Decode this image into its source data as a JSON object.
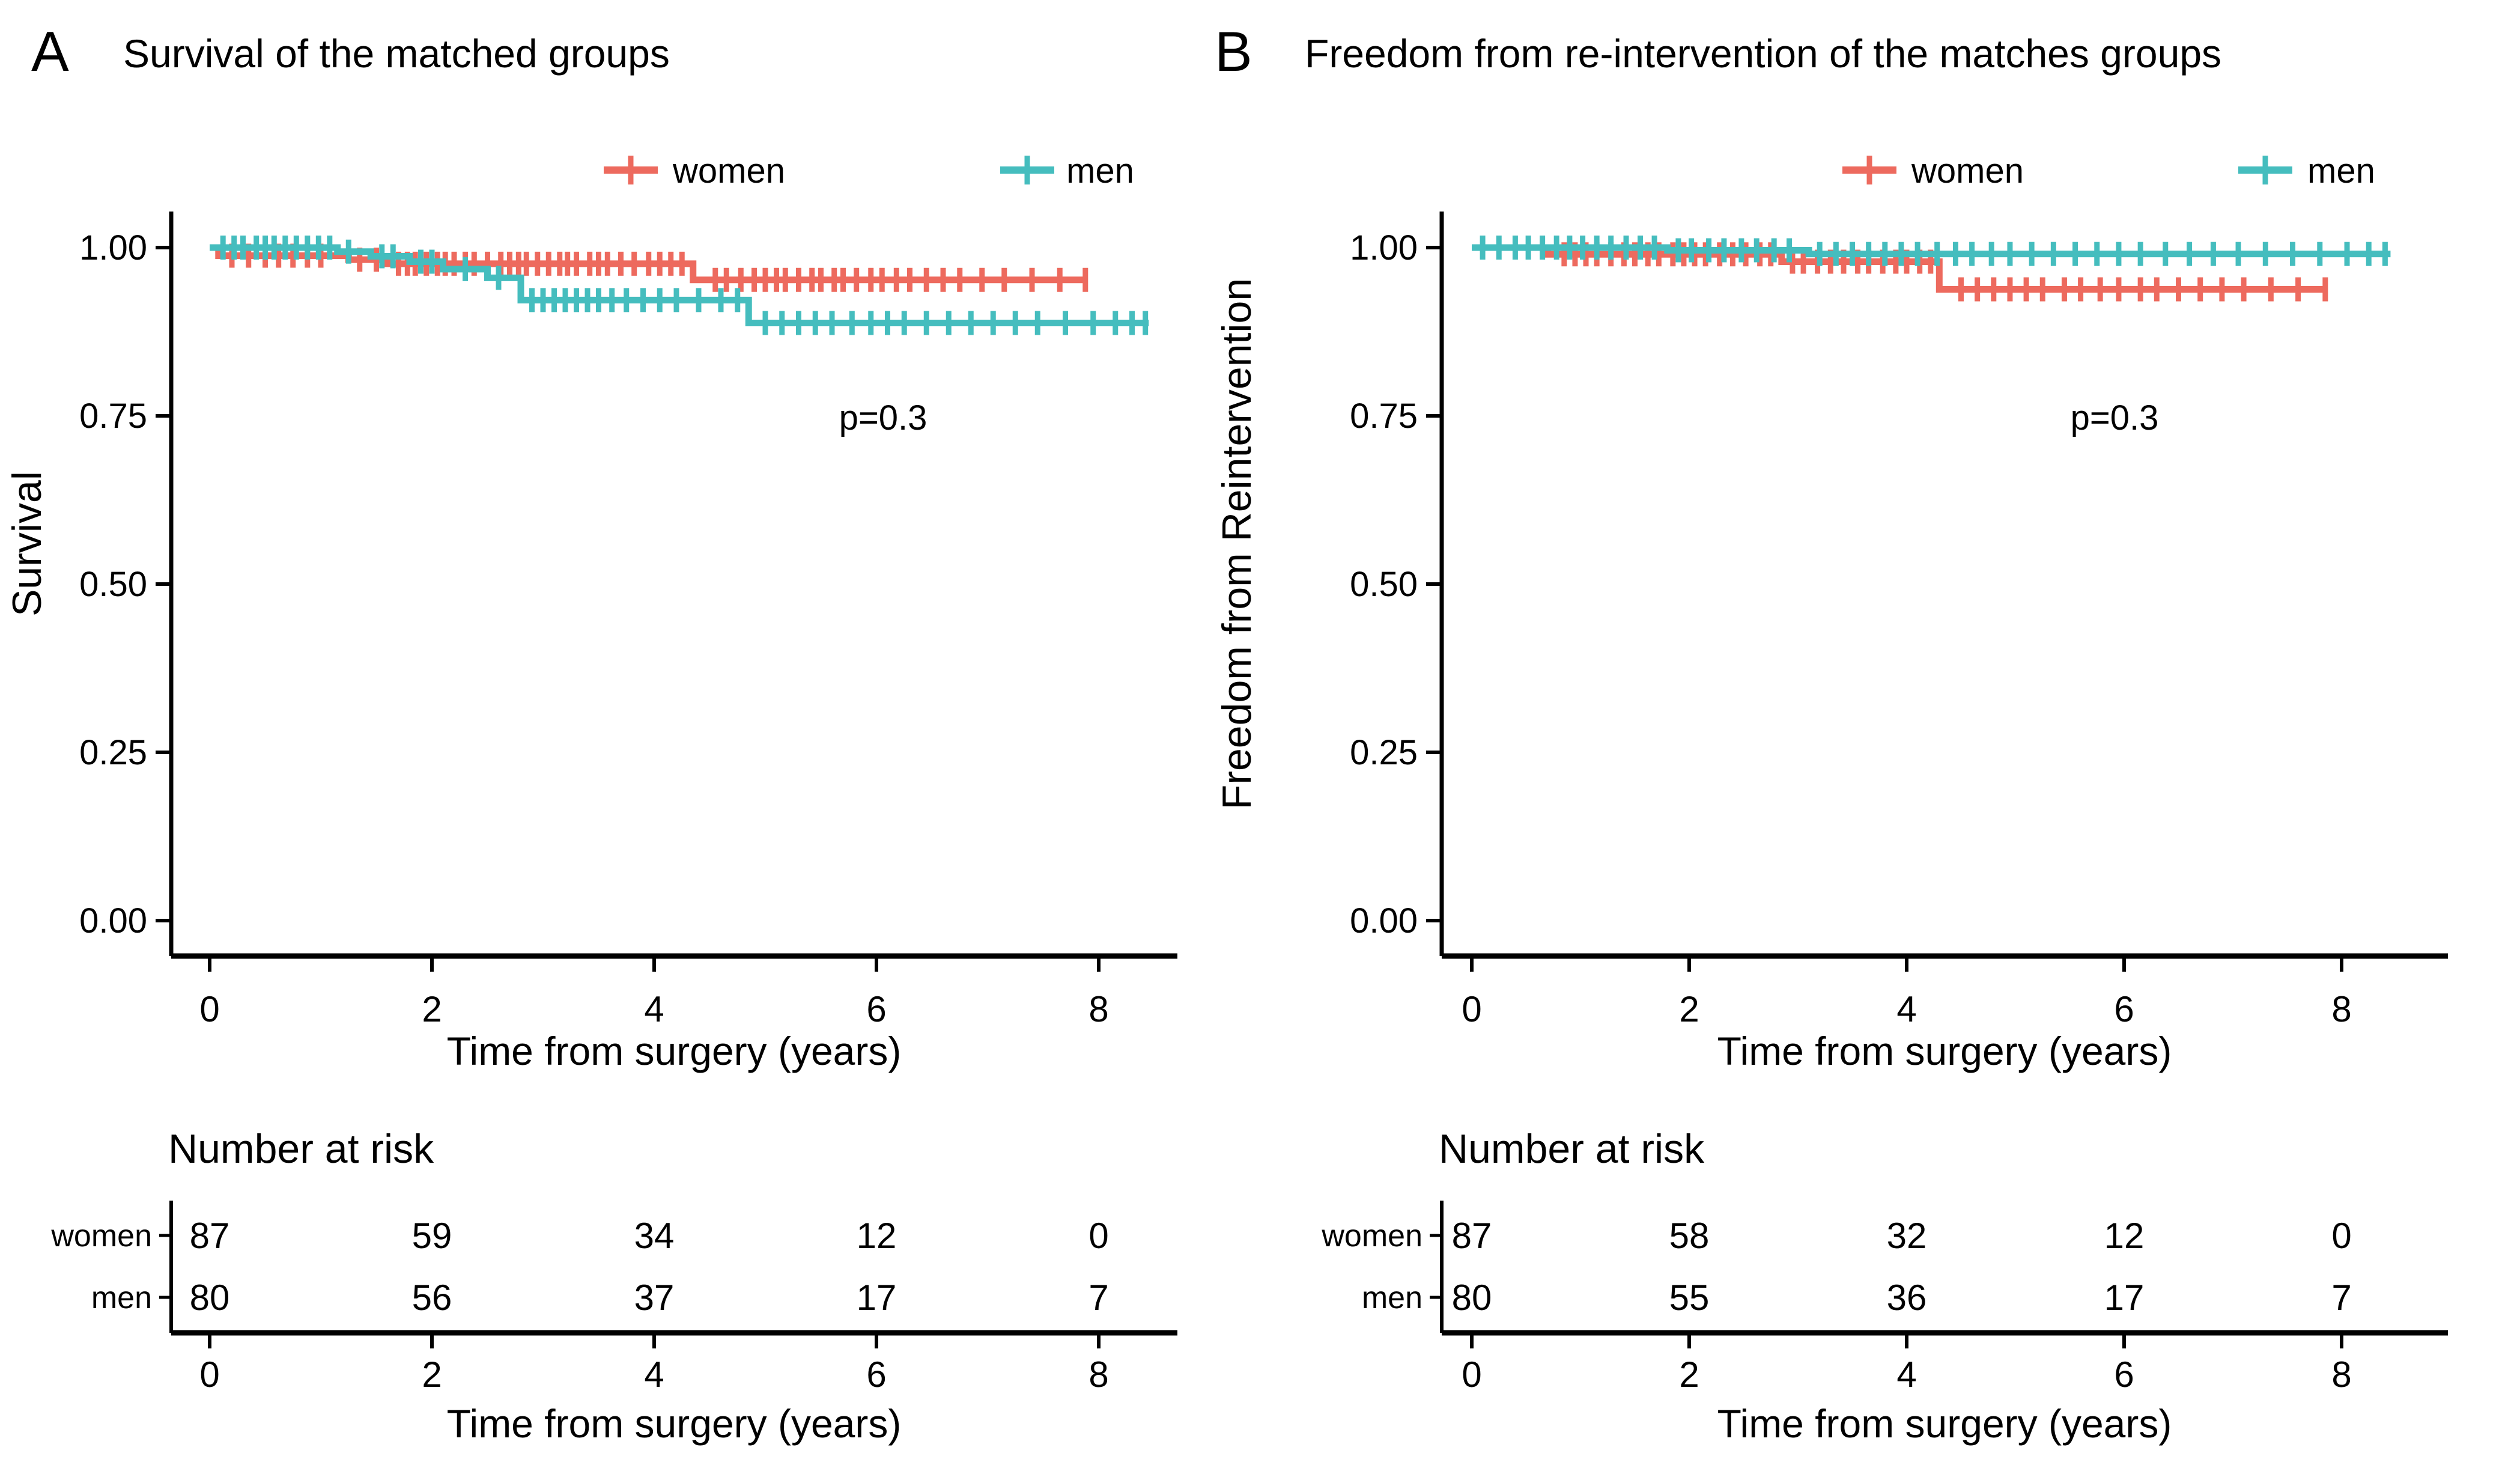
{
  "figure": {
    "panels": [
      {
        "letter": "A",
        "title": "Survival of the matched groups",
        "ylabel": "Survival",
        "xlabel": "Time from surgery (years)",
        "legend": [
          {
            "label": "women",
            "color": "#ED6A5E"
          },
          {
            "label": "men",
            "color": "#45BDBE"
          }
        ],
        "risk_table": {
          "header": "Number at risk",
          "xlabel": "Time from surgery (years)",
          "ticks": [
            0,
            2,
            4,
            6,
            8
          ],
          "rows": [
            {
              "label": "women",
              "values": [
                "87",
                "59",
                "34",
                "12",
                "0"
              ]
            },
            {
              "label": "men",
              "values": [
                "80",
                "56",
                "37",
                "17",
                "7"
              ]
            }
          ]
        }
      },
      {
        "letter": "B",
        "title": "Freedom from re-intervention of the matches groups",
        "ylabel": "Freedom from Reintervention",
        "xlabel": "Time from surgery (years)",
        "legend": [
          {
            "label": "women",
            "color": "#ED6A5E"
          },
          {
            "label": "men",
            "color": "#45BDBE"
          }
        ],
        "risk_table": {
          "header": "Number at risk",
          "xlabel": "Time from surgery (years)",
          "ticks": [
            0,
            2,
            4,
            6,
            8
          ],
          "rows": [
            {
              "label": "women",
              "values": [
                "87",
                "58",
                "32",
                "12",
                "0"
              ]
            },
            {
              "label": "men",
              "values": [
                "80",
                "55",
                "36",
                "17",
                "7"
              ]
            }
          ]
        }
      }
    ]
  },
  "chart_data": [
    {
      "type": "line",
      "subtype": "kaplan-meier-step",
      "title": "Survival of the matched groups",
      "xlabel": "Time from surgery (years)",
      "ylabel": "Survival",
      "xlim": [
        0,
        8.6
      ],
      "ylim": [
        0,
        1.05
      ],
      "xticks": [
        0,
        2,
        4,
        6,
        8
      ],
      "yticks": [
        1.0,
        0.75,
        0.5,
        0.25,
        0.0
      ],
      "grid": false,
      "legend_position": "top",
      "annotation": {
        "text": "p=0.3",
        "x": 6.05,
        "y": 0.73
      },
      "series": [
        {
          "name": "women",
          "color": "#ED6A5E",
          "steps": [
            [
              0,
              1.0
            ],
            [
              0.08,
              0.988
            ],
            [
              1.25,
              0.982
            ],
            [
              1.6,
              0.976
            ],
            [
              4.35,
              0.952
            ]
          ],
          "end": 7.9,
          "censors": [
            0.2,
            0.35,
            0.5,
            0.62,
            0.75,
            0.88,
            1.0,
            1.35,
            1.5,
            1.7,
            1.78,
            1.85,
            1.95,
            2.05,
            2.12,
            2.2,
            2.3,
            2.38,
            2.5,
            2.62,
            2.7,
            2.78,
            2.85,
            2.95,
            3.05,
            3.15,
            3.22,
            3.3,
            3.42,
            3.5,
            3.58,
            3.7,
            3.82,
            3.95,
            4.05,
            4.15,
            4.25,
            4.55,
            4.65,
            4.78,
            4.9,
            5.0,
            5.1,
            5.18,
            5.3,
            5.42,
            5.5,
            5.62,
            5.7,
            5.82,
            5.95,
            6.05,
            6.18,
            6.3,
            6.45,
            6.6,
            6.75,
            6.95,
            7.15,
            7.4,
            7.65,
            7.88
          ]
        },
        {
          "name": "men",
          "color": "#45BDBE",
          "steps": [
            [
              0,
              1.0
            ],
            [
              1.15,
              0.994
            ],
            [
              1.45,
              0.987
            ],
            [
              1.8,
              0.979
            ],
            [
              2.1,
              0.968
            ],
            [
              2.5,
              0.955
            ],
            [
              2.8,
              0.922
            ],
            [
              4.85,
              0.888
            ]
          ],
          "end": 8.45,
          "censors": [
            0.12,
            0.22,
            0.3,
            0.42,
            0.5,
            0.58,
            0.68,
            0.78,
            0.88,
            0.98,
            1.08,
            1.25,
            1.55,
            1.65,
            1.9,
            2.0,
            2.3,
            2.6,
            2.9,
            3.0,
            3.1,
            3.2,
            3.3,
            3.4,
            3.5,
            3.62,
            3.75,
            3.9,
            4.05,
            4.2,
            4.4,
            4.6,
            4.75,
            5.0,
            5.15,
            5.3,
            5.45,
            5.6,
            5.78,
            5.95,
            6.1,
            6.25,
            6.45,
            6.65,
            6.85,
            7.05,
            7.25,
            7.45,
            7.7,
            7.95,
            8.15,
            8.3,
            8.42
          ]
        }
      ]
    },
    {
      "type": "line",
      "subtype": "kaplan-meier-step",
      "title": "Freedom from re-intervention of the matches groups",
      "xlabel": "Time from surgery (years)",
      "ylabel": "Freedom from Reintervention",
      "xlim": [
        0,
        8.6
      ],
      "ylim": [
        0,
        1.05
      ],
      "xticks": [
        0,
        2,
        4,
        6,
        8
      ],
      "yticks": [
        1.0,
        0.75,
        0.5,
        0.25,
        0.0
      ],
      "grid": false,
      "legend_position": "top",
      "annotation": {
        "text": "p=0.3",
        "x": 5.9,
        "y": 0.73
      },
      "series": [
        {
          "name": "women",
          "color": "#ED6A5E",
          "steps": [
            [
              0,
              1.0
            ],
            [
              0.7,
              0.99
            ],
            [
              2.85,
              0.979
            ],
            [
              4.3,
              0.938
            ]
          ],
          "end": 7.85,
          "censors": [
            0.85,
            0.95,
            1.05,
            1.15,
            1.28,
            1.4,
            1.5,
            1.62,
            1.72,
            1.85,
            1.95,
            2.05,
            2.15,
            2.28,
            2.4,
            2.52,
            2.65,
            2.75,
            2.95,
            3.05,
            3.18,
            3.3,
            3.42,
            3.55,
            3.65,
            3.78,
            3.9,
            4.0,
            4.12,
            4.22,
            4.5,
            4.65,
            4.8,
            4.95,
            5.1,
            5.25,
            5.45,
            5.6,
            5.78,
            5.95,
            6.15,
            6.3,
            6.5,
            6.7,
            6.9,
            7.1,
            7.35,
            7.6,
            7.85
          ]
        },
        {
          "name": "men",
          "color": "#45BDBE",
          "steps": [
            [
              0,
              1.0
            ],
            [
              1.8,
              0.996
            ],
            [
              3.1,
              0.9905
            ]
          ],
          "end": 8.45,
          "censors": [
            0.1,
            0.25,
            0.4,
            0.52,
            0.65,
            0.78,
            0.9,
            1.02,
            1.15,
            1.28,
            1.42,
            1.55,
            1.68,
            1.9,
            2.02,
            2.18,
            2.32,
            2.48,
            2.62,
            2.78,
            2.92,
            3.2,
            3.35,
            3.5,
            3.65,
            3.8,
            3.95,
            4.1,
            4.28,
            4.45,
            4.6,
            4.78,
            4.95,
            5.15,
            5.35,
            5.55,
            5.75,
            5.95,
            6.15,
            6.38,
            6.6,
            6.82,
            7.05,
            7.3,
            7.55,
            7.8,
            8.05,
            8.25,
            8.4
          ]
        }
      ]
    }
  ]
}
